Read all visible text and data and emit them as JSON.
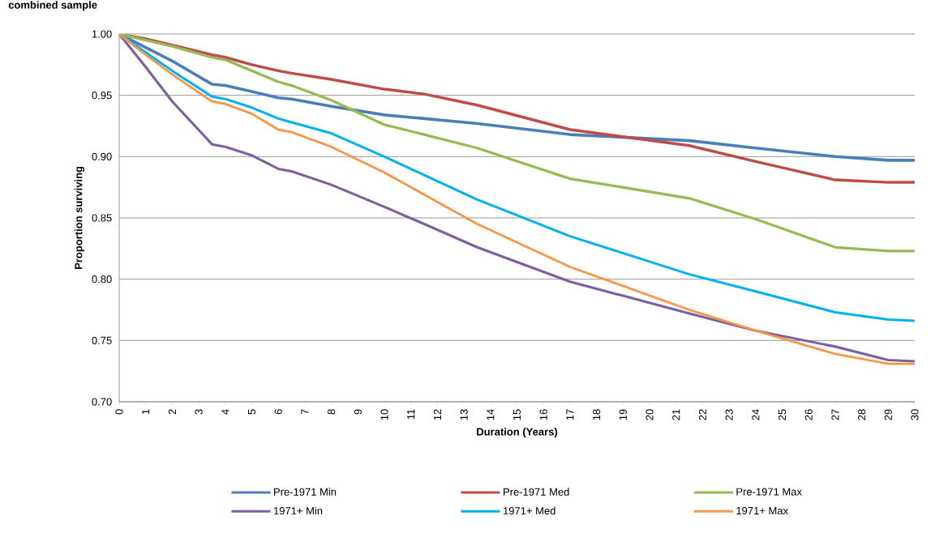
{
  "chart_data": {
    "type": "line",
    "title": "combined sample",
    "xlabel": "Duration (Years)",
    "ylabel": "Proportion surviving",
    "x": [
      0,
      1,
      2,
      3.5,
      4,
      5,
      6,
      6.5,
      8,
      10,
      11.5,
      13.5,
      17,
      21.5,
      24,
      27,
      29,
      30
    ],
    "series": [
      {
        "name": "Pre-1971 Min",
        "color": "#4a7ebb",
        "values": [
          1.0,
          0.989,
          0.978,
          0.959,
          0.958,
          0.953,
          0.948,
          0.947,
          0.941,
          0.934,
          0.931,
          0.927,
          0.918,
          0.913,
          0.907,
          0.9,
          0.897,
          0.897
        ]
      },
      {
        "name": "Pre-1971 Med",
        "color": "#be4b48",
        "values": [
          1.0,
          0.996,
          0.991,
          0.983,
          0.981,
          0.975,
          0.97,
          0.968,
          0.963,
          0.955,
          0.951,
          0.942,
          0.922,
          0.909,
          0.896,
          0.881,
          0.879,
          0.879
        ]
      },
      {
        "name": "Pre-1971 Max",
        "color": "#98b954",
        "values": [
          1.0,
          0.995,
          0.99,
          0.981,
          0.979,
          0.97,
          0.961,
          0.958,
          0.946,
          0.926,
          0.918,
          0.907,
          0.882,
          0.866,
          0.849,
          0.826,
          0.823,
          0.823
        ]
      },
      {
        "name": "1971+ Min",
        "color": "#7d60a0",
        "values": [
          1.0,
          0.973,
          0.945,
          0.91,
          0.908,
          0.901,
          0.89,
          0.888,
          0.877,
          0.859,
          0.845,
          0.826,
          0.798,
          0.772,
          0.758,
          0.745,
          0.734,
          0.733
        ]
      },
      {
        "name": "1971+ Med",
        "color": "#00b0f0",
        "values": [
          1.0,
          0.985,
          0.97,
          0.949,
          0.947,
          0.94,
          0.931,
          0.928,
          0.919,
          0.9,
          0.885,
          0.865,
          0.835,
          0.804,
          0.79,
          0.773,
          0.767,
          0.766
        ]
      },
      {
        "name": "1971+ Max",
        "color": "#f79646",
        "values": [
          1.0,
          0.983,
          0.967,
          0.945,
          0.943,
          0.935,
          0.922,
          0.92,
          0.908,
          0.887,
          0.869,
          0.845,
          0.81,
          0.775,
          0.758,
          0.739,
          0.731,
          0.731
        ]
      }
    ],
    "xlim": [
      0,
      30
    ],
    "xticks": [
      0,
      1,
      2,
      3,
      4,
      5,
      6,
      7,
      8,
      9,
      10,
      11,
      12,
      13,
      14,
      15,
      16,
      17,
      18,
      19,
      20,
      21,
      22,
      23,
      24,
      25,
      26,
      27,
      28,
      29,
      30
    ],
    "ylim": [
      0.7,
      1.0
    ],
    "yticks": [
      {
        "value": 0.7,
        "label": "0.70"
      },
      {
        "value": 0.75,
        "label": "0.75"
      },
      {
        "value": 0.8,
        "label": "0.80"
      },
      {
        "value": 0.85,
        "label": "0.85"
      },
      {
        "value": 0.9,
        "label": "0.90"
      },
      {
        "value": 0.95,
        "label": "0.95"
      },
      {
        "value": 1.0,
        "label": "1.00"
      }
    ],
    "grid": "y",
    "legend": "bottom",
    "marker": "none",
    "line_style": "solid"
  }
}
